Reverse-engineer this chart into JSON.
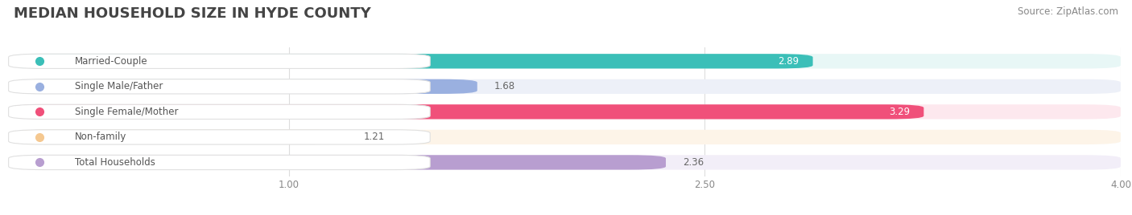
{
  "title": "MEDIAN HOUSEHOLD SIZE IN HYDE COUNTY",
  "source": "Source: ZipAtlas.com",
  "categories": [
    "Married-Couple",
    "Single Male/Father",
    "Single Female/Mother",
    "Non-family",
    "Total Households"
  ],
  "values": [
    2.89,
    1.68,
    3.29,
    1.21,
    2.36
  ],
  "bar_colors": [
    "#3bbfb8",
    "#9ab0e0",
    "#f0507a",
    "#f5c890",
    "#b89ed0"
  ],
  "bar_bg_colors": [
    "#e8f7f6",
    "#edf0f8",
    "#fde8ee",
    "#fdf4e8",
    "#f2eef8"
  ],
  "dot_colors": [
    "#3bbfb8",
    "#9ab0e0",
    "#f0507a",
    "#f5c890",
    "#b89ed0"
  ],
  "value_inside": [
    true,
    false,
    true,
    false,
    false
  ],
  "xlim_data": [
    0.0,
    4.0
  ],
  "x_min": 0.0,
  "x_max": 4.0,
  "xticks": [
    1.0,
    2.5,
    4.0
  ],
  "xtick_labels": [
    "1.00",
    "2.50",
    "4.00"
  ],
  "title_fontsize": 13,
  "source_fontsize": 8.5,
  "label_fontsize": 8.5,
  "value_fontsize": 8.5,
  "background_color": "#ffffff",
  "label_bg_color": "#ffffff",
  "label_text_color": "#555555",
  "grid_color": "#dddddd"
}
